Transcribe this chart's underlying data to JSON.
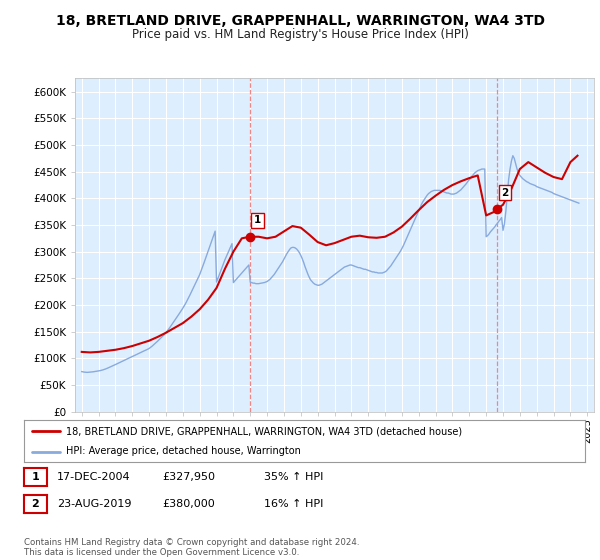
{
  "title": "18, BRETLAND DRIVE, GRAPPENHALL, WARRINGTON, WA4 3TD",
  "subtitle": "Price paid vs. HM Land Registry's House Price Index (HPI)",
  "title_fontsize": 10,
  "subtitle_fontsize": 8.5,
  "ylabel_ticks": [
    "£0",
    "£50K",
    "£100K",
    "£150K",
    "£200K",
    "£250K",
    "£300K",
    "£350K",
    "£400K",
    "£450K",
    "£500K",
    "£550K",
    "£600K"
  ],
  "ytick_values": [
    0,
    50000,
    100000,
    150000,
    200000,
    250000,
    300000,
    350000,
    400000,
    450000,
    500000,
    550000,
    600000
  ],
  "ylim": [
    0,
    625000
  ],
  "xlim_start": 1994.6,
  "xlim_end": 2025.4,
  "background_color": "#ffffff",
  "plot_bg_color": "#ddeeff",
  "grid_color": "#ffffff",
  "red_line_color": "#cc0000",
  "blue_line_color": "#88aadd",
  "marker1_x": 2004.96,
  "marker1_y": 327950,
  "marker2_x": 2019.64,
  "marker2_y": 380000,
  "vline_color": "#ee8888",
  "legend_label_red": "18, BRETLAND DRIVE, GRAPPENHALL, WARRINGTON, WA4 3TD (detached house)",
  "legend_label_blue": "HPI: Average price, detached house, Warrington",
  "table_row1": [
    "1",
    "17-DEC-2004",
    "£327,950",
    "35% ↑ HPI"
  ],
  "table_row2": [
    "2",
    "23-AUG-2019",
    "£380,000",
    "16% ↑ HPI"
  ],
  "footnote": "Contains HM Land Registry data © Crown copyright and database right 2024.\nThis data is licensed under the Open Government Licence v3.0.",
  "hpi_x": [
    1995.0,
    1995.083,
    1995.167,
    1995.25,
    1995.333,
    1995.417,
    1995.5,
    1995.583,
    1995.667,
    1995.75,
    1995.833,
    1995.917,
    1996.0,
    1996.083,
    1996.167,
    1996.25,
    1996.333,
    1996.417,
    1996.5,
    1996.583,
    1996.667,
    1996.75,
    1996.833,
    1996.917,
    1997.0,
    1997.083,
    1997.167,
    1997.25,
    1997.333,
    1997.417,
    1997.5,
    1997.583,
    1997.667,
    1997.75,
    1997.833,
    1997.917,
    1998.0,
    1998.083,
    1998.167,
    1998.25,
    1998.333,
    1998.417,
    1998.5,
    1998.583,
    1998.667,
    1998.75,
    1998.833,
    1998.917,
    1999.0,
    1999.083,
    1999.167,
    1999.25,
    1999.333,
    1999.417,
    1999.5,
    1999.583,
    1999.667,
    1999.75,
    1999.833,
    1999.917,
    2000.0,
    2000.083,
    2000.167,
    2000.25,
    2000.333,
    2000.417,
    2000.5,
    2000.583,
    2000.667,
    2000.75,
    2000.833,
    2000.917,
    2001.0,
    2001.083,
    2001.167,
    2001.25,
    2001.333,
    2001.417,
    2001.5,
    2001.583,
    2001.667,
    2001.75,
    2001.833,
    2001.917,
    2002.0,
    2002.083,
    2002.167,
    2002.25,
    2002.333,
    2002.417,
    2002.5,
    2002.583,
    2002.667,
    2002.75,
    2002.833,
    2002.917,
    2003.0,
    2003.083,
    2003.167,
    2003.25,
    2003.333,
    2003.417,
    2003.5,
    2003.583,
    2003.667,
    2003.75,
    2003.833,
    2003.917,
    2004.0,
    2004.083,
    2004.167,
    2004.25,
    2004.333,
    2004.417,
    2004.5,
    2004.583,
    2004.667,
    2004.75,
    2004.833,
    2004.917,
    2005.0,
    2005.083,
    2005.167,
    2005.25,
    2005.333,
    2005.417,
    2005.5,
    2005.583,
    2005.667,
    2005.75,
    2005.833,
    2005.917,
    2006.0,
    2006.083,
    2006.167,
    2006.25,
    2006.333,
    2006.417,
    2006.5,
    2006.583,
    2006.667,
    2006.75,
    2006.833,
    2006.917,
    2007.0,
    2007.083,
    2007.167,
    2007.25,
    2007.333,
    2007.417,
    2007.5,
    2007.583,
    2007.667,
    2007.75,
    2007.833,
    2007.917,
    2008.0,
    2008.083,
    2008.167,
    2008.25,
    2008.333,
    2008.417,
    2008.5,
    2008.583,
    2008.667,
    2008.75,
    2008.833,
    2008.917,
    2009.0,
    2009.083,
    2009.167,
    2009.25,
    2009.333,
    2009.417,
    2009.5,
    2009.583,
    2009.667,
    2009.75,
    2009.833,
    2009.917,
    2010.0,
    2010.083,
    2010.167,
    2010.25,
    2010.333,
    2010.417,
    2010.5,
    2010.583,
    2010.667,
    2010.75,
    2010.833,
    2010.917,
    2011.0,
    2011.083,
    2011.167,
    2011.25,
    2011.333,
    2011.417,
    2011.5,
    2011.583,
    2011.667,
    2011.75,
    2011.833,
    2011.917,
    2012.0,
    2012.083,
    2012.167,
    2012.25,
    2012.333,
    2012.417,
    2012.5,
    2012.583,
    2012.667,
    2012.75,
    2012.833,
    2012.917,
    2013.0,
    2013.083,
    2013.167,
    2013.25,
    2013.333,
    2013.417,
    2013.5,
    2013.583,
    2013.667,
    2013.75,
    2013.833,
    2013.917,
    2014.0,
    2014.083,
    2014.167,
    2014.25,
    2014.333,
    2014.417,
    2014.5,
    2014.583,
    2014.667,
    2014.75,
    2014.833,
    2014.917,
    2015.0,
    2015.083,
    2015.167,
    2015.25,
    2015.333,
    2015.417,
    2015.5,
    2015.583,
    2015.667,
    2015.75,
    2015.833,
    2015.917,
    2016.0,
    2016.083,
    2016.167,
    2016.25,
    2016.333,
    2016.417,
    2016.5,
    2016.583,
    2016.667,
    2016.75,
    2016.833,
    2016.917,
    2017.0,
    2017.083,
    2017.167,
    2017.25,
    2017.333,
    2017.417,
    2017.5,
    2017.583,
    2017.667,
    2017.75,
    2017.833,
    2017.917,
    2018.0,
    2018.083,
    2018.167,
    2018.25,
    2018.333,
    2018.417,
    2018.5,
    2018.583,
    2018.667,
    2018.75,
    2018.833,
    2018.917,
    2019.0,
    2019.083,
    2019.167,
    2019.25,
    2019.333,
    2019.417,
    2019.5,
    2019.583,
    2019.667,
    2019.75,
    2019.833,
    2019.917,
    2020.0,
    2020.083,
    2020.167,
    2020.25,
    2020.333,
    2020.417,
    2020.5,
    2020.583,
    2020.667,
    2020.75,
    2020.833,
    2020.917,
    2021.0,
    2021.083,
    2021.167,
    2021.25,
    2021.333,
    2021.417,
    2021.5,
    2021.583,
    2021.667,
    2021.75,
    2021.833,
    2021.917,
    2022.0,
    2022.083,
    2022.167,
    2022.25,
    2022.333,
    2022.417,
    2022.5,
    2022.583,
    2022.667,
    2022.75,
    2022.833,
    2022.917,
    2023.0,
    2023.083,
    2023.167,
    2023.25,
    2023.333,
    2023.417,
    2023.5,
    2023.583,
    2023.667,
    2023.75,
    2023.833,
    2023.917,
    2024.0,
    2024.083,
    2024.167,
    2024.25,
    2024.333,
    2024.417,
    2024.5
  ],
  "hpi_y": [
    75000,
    74500,
    74000,
    73800,
    73600,
    73800,
    74000,
    74300,
    74600,
    75000,
    75400,
    75800,
    76200,
    76800,
    77400,
    78200,
    79000,
    80000,
    81000,
    82200,
    83400,
    84600,
    85800,
    87000,
    88200,
    89500,
    90800,
    92100,
    93400,
    94700,
    96000,
    97200,
    98400,
    99600,
    100800,
    102000,
    103200,
    104500,
    105800,
    107100,
    108400,
    109700,
    111000,
    112200,
    113400,
    114600,
    115800,
    117000,
    118500,
    120500,
    122500,
    124800,
    127100,
    129400,
    132000,
    134600,
    137200,
    139800,
    142400,
    145000,
    148000,
    151500,
    155000,
    158800,
    162600,
    166400,
    170200,
    174000,
    178000,
    182000,
    186000,
    190000,
    194000,
    198500,
    203000,
    208000,
    213000,
    218500,
    224000,
    229500,
    235000,
    240500,
    246000,
    251500,
    257000,
    264000,
    271000,
    278500,
    286000,
    293500,
    301000,
    308500,
    316000,
    323500,
    331000,
    338500,
    243000,
    250000,
    257000,
    264000,
    271000,
    278000,
    285000,
    291000,
    297000,
    303000,
    309000,
    315000,
    242000,
    245000,
    248000,
    251000,
    254000,
    257000,
    260000,
    263000,
    266000,
    269000,
    272000,
    275000,
    243000,
    242000,
    241000,
    241000,
    240000,
    240000,
    240000,
    240500,
    241000,
    241500,
    242000,
    243000,
    244000,
    246000,
    248000,
    251000,
    254000,
    257000,
    261000,
    265000,
    269000,
    273000,
    277000,
    281000,
    286000,
    291000,
    296000,
    300000,
    304000,
    307000,
    308000,
    308000,
    307000,
    305000,
    302000,
    298000,
    293000,
    287000,
    280000,
    272000,
    265000,
    258000,
    252000,
    247000,
    244000,
    241000,
    239000,
    238000,
    237000,
    237000,
    238000,
    239000,
    241000,
    243000,
    245000,
    247000,
    249000,
    251000,
    253000,
    255000,
    257000,
    259000,
    261000,
    263000,
    265000,
    267000,
    269000,
    271000,
    272000,
    273000,
    274000,
    275000,
    275000,
    274000,
    273000,
    272000,
    271000,
    270000,
    270000,
    269000,
    268000,
    267000,
    267000,
    266000,
    265000,
    264000,
    263000,
    262000,
    262000,
    261000,
    261000,
    260000,
    260000,
    260000,
    260000,
    261000,
    262000,
    264000,
    267000,
    270000,
    273000,
    277000,
    281000,
    285000,
    289000,
    293000,
    297000,
    301000,
    306000,
    311000,
    317000,
    323000,
    329000,
    335000,
    341000,
    347000,
    353000,
    359000,
    365000,
    371000,
    377000,
    383000,
    389000,
    394000,
    398000,
    402000,
    406000,
    409000,
    411000,
    413000,
    414000,
    415000,
    415000,
    415000,
    415000,
    415000,
    414000,
    413000,
    412000,
    411000,
    410000,
    410000,
    409000,
    408000,
    408000,
    408000,
    409000,
    410000,
    412000,
    414000,
    416000,
    419000,
    422000,
    425000,
    428000,
    432000,
    435000,
    438000,
    442000,
    445000,
    448000,
    450000,
    452000,
    453000,
    454000,
    455000,
    455000,
    455000,
    328000,
    330000,
    333000,
    337000,
    340000,
    343000,
    346000,
    350000,
    353000,
    357000,
    360000,
    364000,
    340000,
    352000,
    375000,
    405000,
    435000,
    455000,
    470000,
    480000,
    475000,
    465000,
    455000,
    448000,
    443000,
    440000,
    437000,
    435000,
    433000,
    431000,
    430000,
    428000,
    427000,
    426000,
    425000,
    424000,
    422000,
    421000,
    420000,
    419000,
    418000,
    417000,
    416000,
    415000,
    414000,
    413000,
    412000,
    411000,
    409000,
    408000,
    407000,
    406000,
    405000,
    404000,
    403000,
    402000,
    401000,
    400000,
    399000,
    398000,
    397000,
    396000,
    395000,
    394000,
    393000,
    392000,
    391000,
    390000,
    389000,
    388000,
    387000,
    386000,
    385000,
    384000,
    383000,
    382000,
    381000
  ],
  "red_x": [
    1995.0,
    1995.5,
    1996.0,
    1996.5,
    1997.0,
    1997.5,
    1998.0,
    1998.5,
    1999.0,
    1999.5,
    2000.0,
    2000.5,
    2001.0,
    2001.5,
    2002.0,
    2002.5,
    2003.0,
    2003.5,
    2004.0,
    2004.5,
    2004.96,
    2005.5,
    2006.0,
    2006.5,
    2007.0,
    2007.5,
    2008.0,
    2008.5,
    2009.0,
    2009.5,
    2010.0,
    2010.5,
    2011.0,
    2011.5,
    2012.0,
    2012.5,
    2013.0,
    2013.5,
    2014.0,
    2014.5,
    2015.0,
    2015.5,
    2016.0,
    2016.5,
    2017.0,
    2017.5,
    2018.0,
    2018.5,
    2019.0,
    2019.5,
    2019.64,
    2020.0,
    2020.5,
    2021.0,
    2021.5,
    2022.0,
    2022.5,
    2023.0,
    2023.5,
    2024.0,
    2024.42
  ],
  "red_y": [
    112000,
    111000,
    112000,
    114000,
    116000,
    119000,
    123000,
    128000,
    133000,
    140000,
    148000,
    157000,
    166000,
    178000,
    192000,
    210000,
    232000,
    268000,
    300000,
    325000,
    327950,
    328000,
    325000,
    328000,
    338000,
    348000,
    345000,
    332000,
    318000,
    312000,
    316000,
    322000,
    328000,
    330000,
    327000,
    326000,
    328000,
    336000,
    347000,
    362000,
    378000,
    393000,
    405000,
    416000,
    425000,
    432000,
    438000,
    443000,
    368000,
    375000,
    380000,
    388000,
    418000,
    455000,
    468000,
    458000,
    448000,
    440000,
    436000,
    468000,
    480000
  ]
}
